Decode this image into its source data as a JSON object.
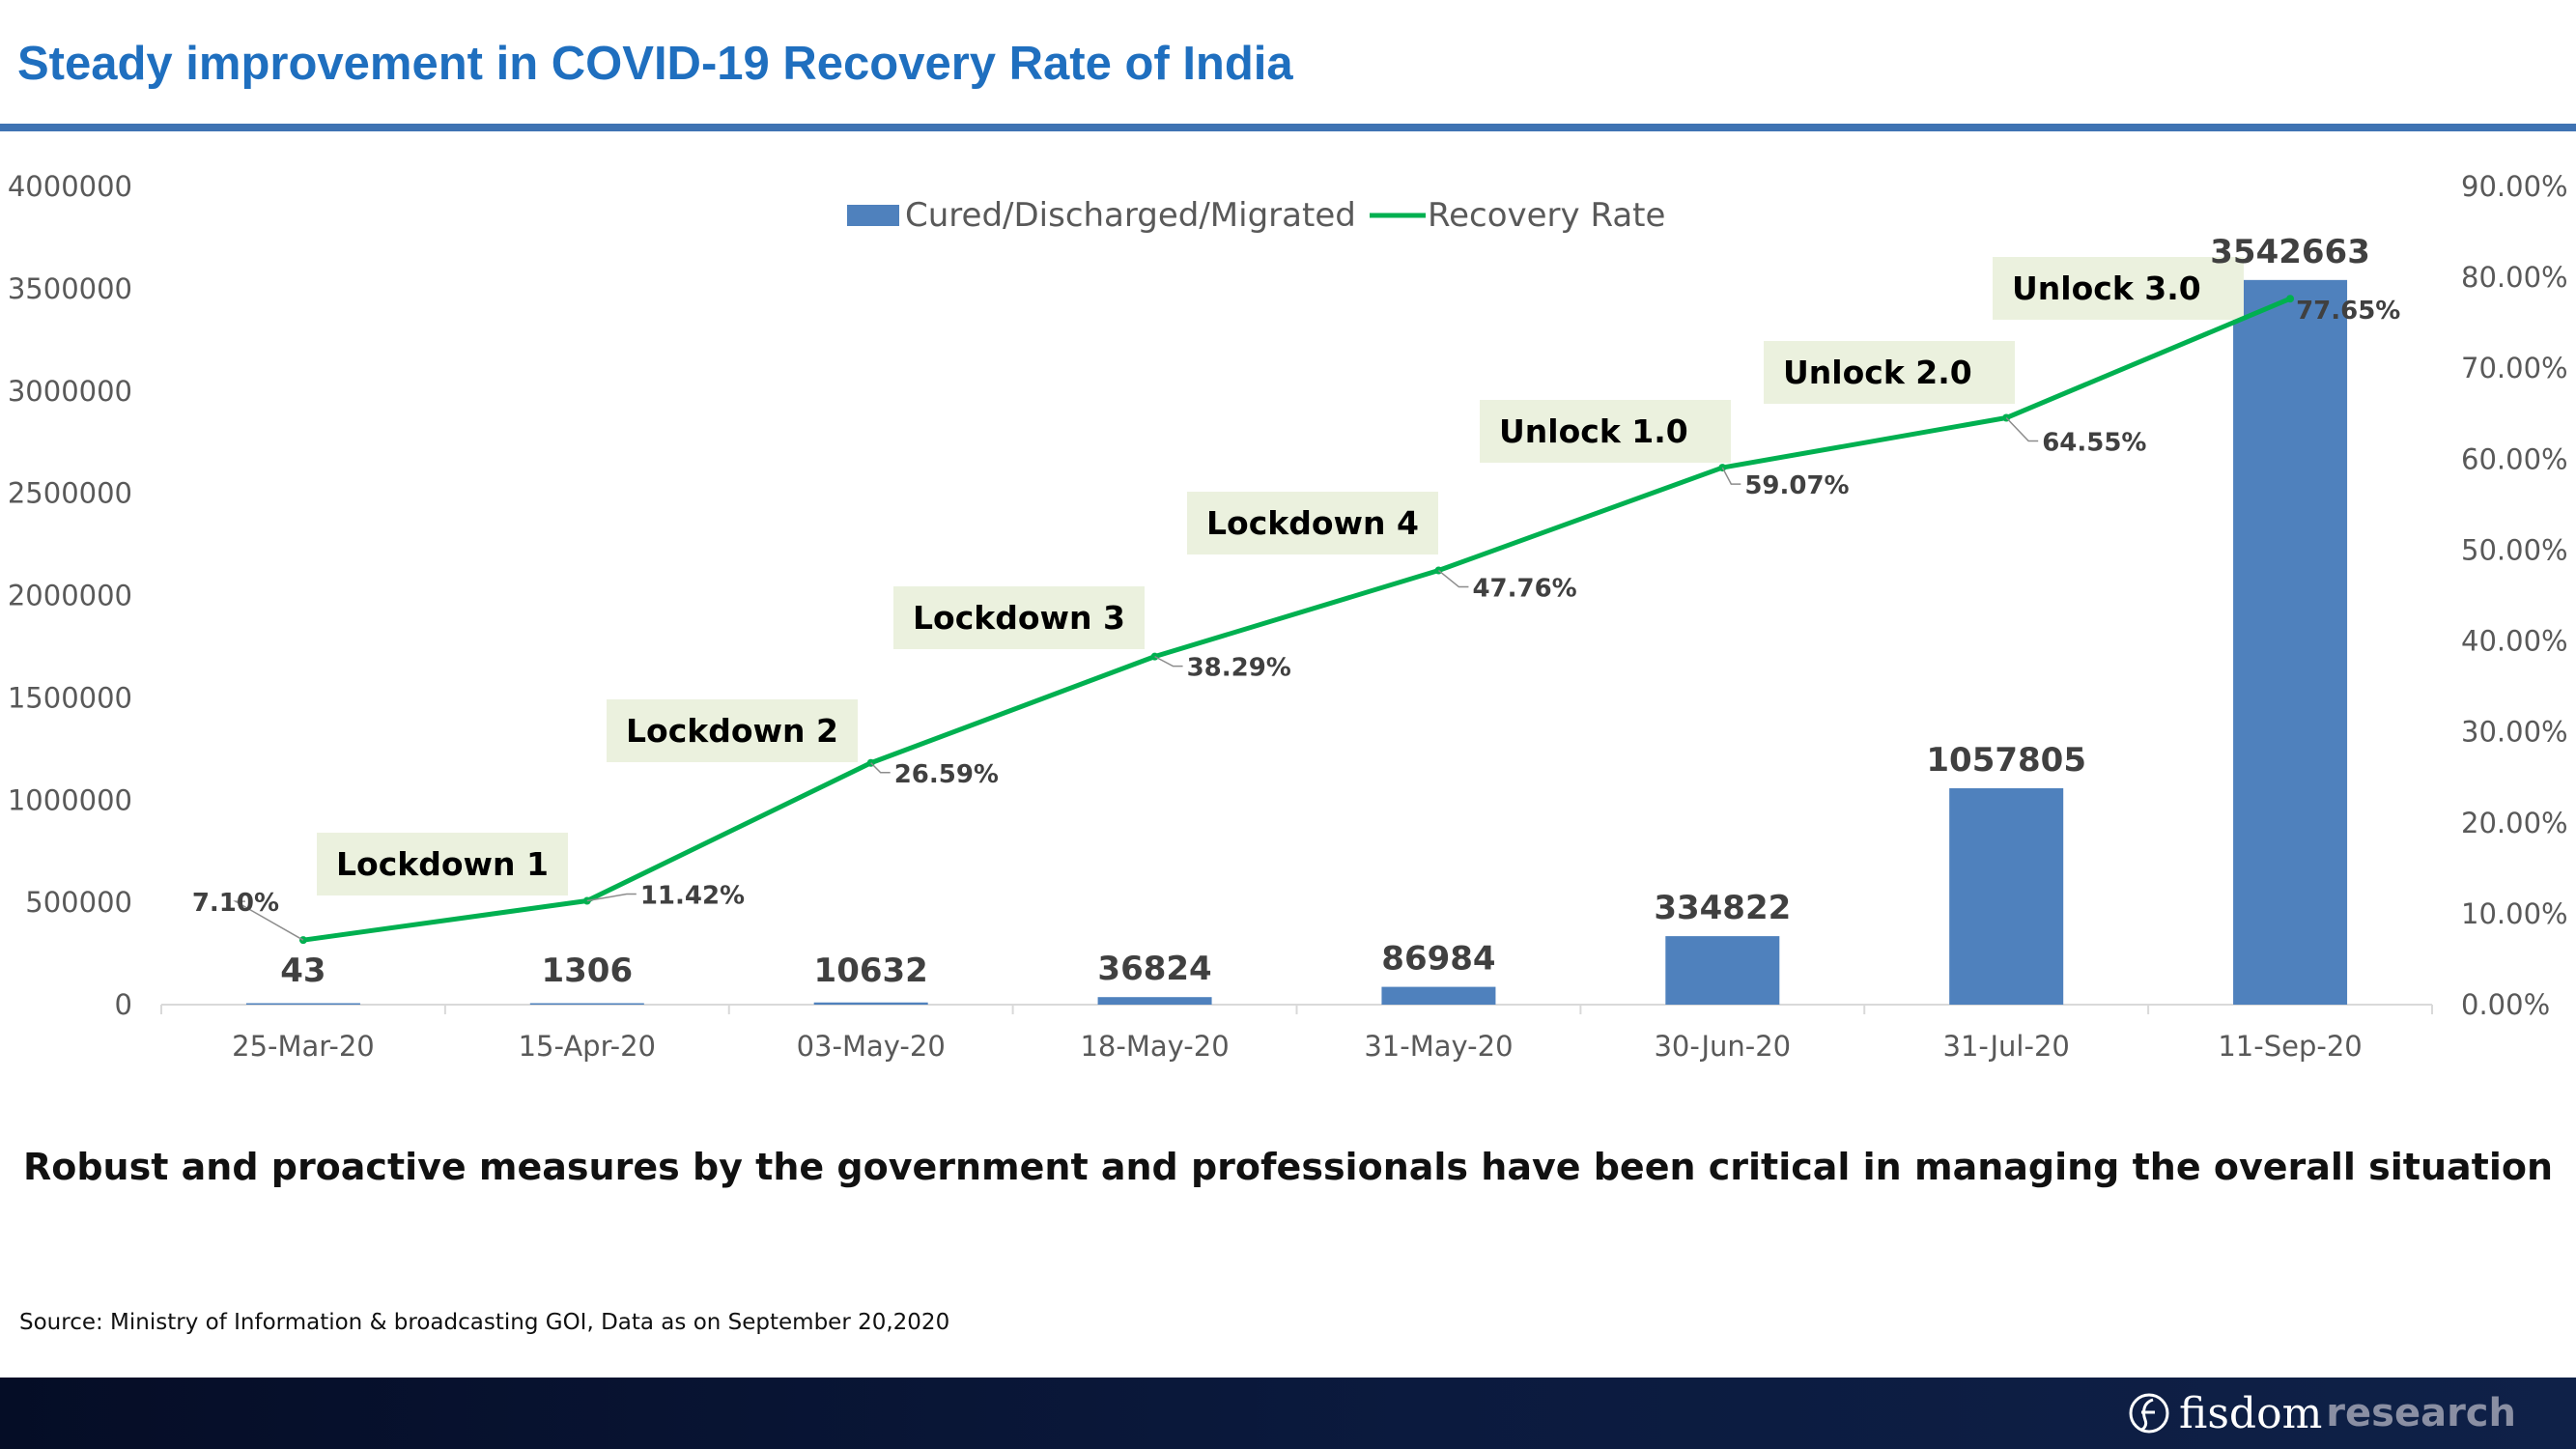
{
  "header": {
    "title": "Steady improvement in COVID-19 Recovery Rate of India"
  },
  "chart_data": {
    "type": "bar",
    "categories": [
      "25-Mar-20",
      "15-Apr-20",
      "03-May-20",
      "18-May-20",
      "31-May-20",
      "30-Jun-20",
      "31-Jul-20",
      "11-Sep-20"
    ],
    "series": [
      {
        "name": "Cured/Discharged/Migrated",
        "type": "bar",
        "axis": "left",
        "color": "#4f81bd",
        "values": [
          43,
          1306,
          10632,
          36824,
          86984,
          334822,
          1057805,
          3542663
        ],
        "labels": [
          "43",
          "1306",
          "10632",
          "36824",
          "86984",
          "334822",
          "1057805",
          "3542663"
        ]
      },
      {
        "name": "Recovery Rate",
        "type": "line",
        "axis": "right",
        "color": "#00b050",
        "values": [
          7.1,
          11.42,
          26.59,
          38.29,
          47.76,
          59.07,
          64.55,
          77.65
        ],
        "labels": [
          "7.10%",
          "11.42%",
          "26.59%",
          "38.29%",
          "47.76%",
          "59.07%",
          "64.55%",
          "77.65%"
        ]
      }
    ],
    "y_left": {
      "min": 0,
      "max": 4000000,
      "ticks": [
        "0",
        "500000",
        "1000000",
        "1500000",
        "2000000",
        "2500000",
        "3000000",
        "3500000",
        "4000000"
      ]
    },
    "y_right": {
      "min": 0,
      "max": 90,
      "ticks": [
        "0.00%",
        "10.00%",
        "20.00%",
        "30.00%",
        "40.00%",
        "50.00%",
        "60.00%",
        "70.00%",
        "80.00%",
        "90.00%"
      ]
    },
    "phases": [
      "Lockdown 1",
      "Lockdown 2",
      "Lockdown 3",
      "Lockdown 4",
      "Unlock 1.0",
      "Unlock 2.0",
      "Unlock 3.0"
    ],
    "legend_position": "top",
    "grid": false
  },
  "conclusion": "Robust and proactive measures by the government and professionals have been critical in managing the overall situation",
  "source": "Source: Ministry of Information & broadcasting  GOI, Data as on September 20,2020",
  "brand": {
    "name": "fisdom",
    "suffix": "research",
    "icon": "fisdom-logo-icon"
  },
  "colors": {
    "title": "#1f6fbf",
    "rule": "#3f73b3",
    "bar": "#4f81bd",
    "line": "#00b050",
    "phase_box": "#ebf1de",
    "footer": "#0b1a3e"
  }
}
